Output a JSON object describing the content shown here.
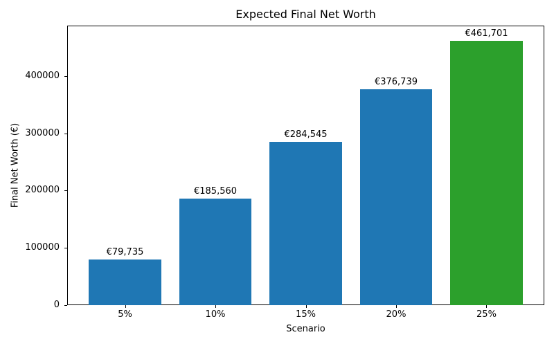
{
  "chart_data": {
    "type": "bar",
    "title": "Expected Final Net Worth",
    "xlabel": "Scenario",
    "ylabel": "Final Net Worth (€)",
    "categories": [
      "5%",
      "10%",
      "15%",
      "20%",
      "25%"
    ],
    "values": [
      79735,
      185560,
      284545,
      376739,
      461701
    ],
    "bar_labels": [
      "€79,735",
      "€185,560",
      "€284,545",
      "€376,739",
      "€461,701"
    ],
    "bar_colors": [
      "#1f77b4",
      "#1f77b4",
      "#1f77b4",
      "#1f77b4",
      "#2ca02c"
    ],
    "ytick_values": [
      0,
      100000,
      200000,
      300000,
      400000
    ],
    "ytick_labels": [
      "0",
      "100000",
      "200000",
      "300000",
      "400000"
    ],
    "ylim": [
      0,
      488000
    ],
    "bar_width_fraction": 0.8,
    "x_margin": 0.64,
    "grid": false,
    "legend": "none",
    "spine_color": "#000000",
    "background_color": "#ffffff"
  }
}
